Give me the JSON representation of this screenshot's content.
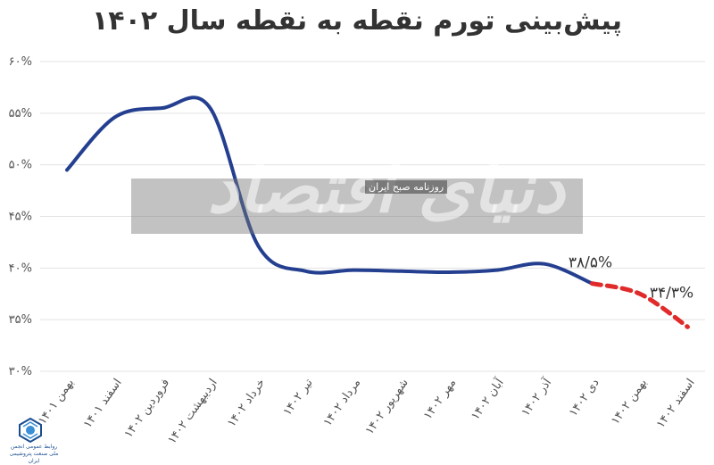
{
  "title": "پیش‌بینی تورم نقطه به نقطه سال ۱۴۰۲",
  "watermark": {
    "main": "دنیای اقتصاد",
    "sub": "روزنامه صبح ایران"
  },
  "logo": {
    "icon": "petrochemical-association-logo",
    "text": "روابط عمومی انجمن ملی صنعت پتروشیمی ایران"
  },
  "colors": {
    "actual": "#243f8f",
    "forecast": "#e12a2a",
    "grid": "#e3e3e3"
  },
  "chart_data": {
    "type": "line",
    "title": "پیش‌بینی تورم نقطه به نقطه سال ۱۴۰۲",
    "ylim": [
      30,
      60
    ],
    "yticks": [
      "۳۰%",
      "۳۵%",
      "۴۰%",
      "۴۵%",
      "۵۰%",
      "۵۵%",
      "۶۰%"
    ],
    "grid": true,
    "categories": [
      "بهمن ۱۴۰۱",
      "اسفند ۱۴۰۱",
      "فروردین ۱۴۰۲",
      "اردیبهشت ۱۴۰۲",
      "خرداد ۱۴۰۲",
      "تیر ۱۴۰۲",
      "مرداد ۱۴۰۲",
      "شهریور ۱۴۰۲",
      "مهر ۱۴۰۲",
      "آبان ۱۴۰۲",
      "آذر ۱۴۰۲",
      "دی ۱۴۰۲",
      "بهمن ۱۴۰۲",
      "اسفند ۱۴۰۲"
    ],
    "series": [
      {
        "style": "solid",
        "values": [
          49.5,
          54.6,
          55.5,
          55.5,
          42.2,
          39.7,
          39.8,
          39.7,
          39.6,
          39.8,
          40.4,
          38.5,
          null,
          null
        ]
      },
      {
        "style": "dashed",
        "values": [
          null,
          null,
          null,
          null,
          null,
          null,
          null,
          null,
          null,
          null,
          null,
          38.5,
          37.5,
          34.3
        ]
      }
    ],
    "annotations": [
      {
        "category": "دی ۱۴۰۲",
        "text": "۳۸/۵%"
      },
      {
        "category": "اسفند ۱۴۰۲",
        "text": "۳۴/۳%"
      }
    ]
  }
}
